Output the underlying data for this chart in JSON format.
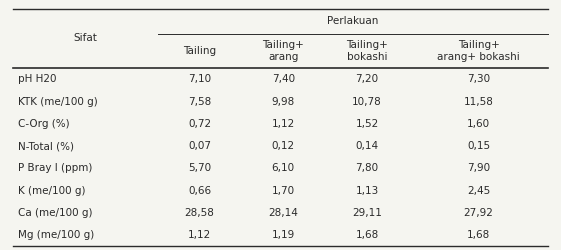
{
  "title_row": "Perlakuan",
  "col_header_left": "Sifat",
  "col_headers": [
    "Tailing",
    "Tailing+\narang",
    "Tailing+\nbokashi",
    "Tailing+\narang+ bokashi"
  ],
  "row_labels": [
    "pH H20",
    "KTK (me/100 g)",
    "C-Org (%)",
    "N-Total (%)",
    "P Bray I (ppm)",
    "K (me/100 g)",
    "Ca (me/100 g)",
    "Mg (me/100 g)"
  ],
  "data": [
    [
      "7,10",
      "7,40",
      "7,20",
      "7,30"
    ],
    [
      "7,58",
      "9,98",
      "10,78",
      "11,58"
    ],
    [
      "0,72",
      "1,12",
      "1,52",
      "1,60"
    ],
    [
      "0,07",
      "0,12",
      "0,14",
      "0,15"
    ],
    [
      "5,70",
      "6,10",
      "7,80",
      "7,90"
    ],
    [
      "0,66",
      "1,70",
      "1,13",
      "2,45"
    ],
    [
      "28,58",
      "28,14",
      "29,11",
      "27,92"
    ],
    [
      "1,12",
      "1,19",
      "1,68",
      "1,68"
    ]
  ],
  "bg_color": "#f5f5f0",
  "text_color": "#2b2b2b",
  "font_size": 7.5,
  "header_font_size": 7.5
}
